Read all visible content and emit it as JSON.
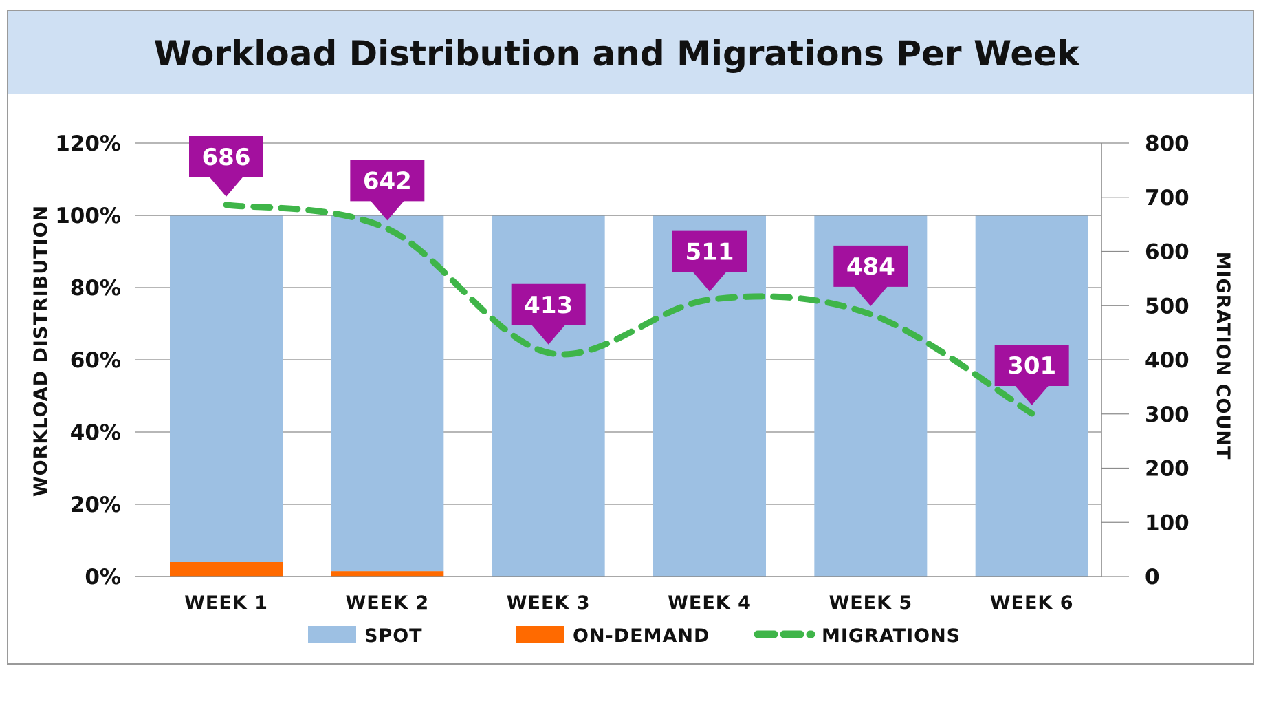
{
  "chart_data": {
    "type": "bar",
    "title": "Workload Distribution and Migrations Per Week",
    "categories": [
      "WEEK 1",
      "WEEK 2",
      "WEEK 3",
      "WEEK 4",
      "WEEK 5",
      "WEEK 6"
    ],
    "series": [
      {
        "name": "SPOT",
        "type": "bar",
        "axis": "left",
        "stacked": true,
        "color": "#9dc0e3",
        "values": [
          96,
          98.5,
          100,
          100,
          100,
          100
        ]
      },
      {
        "name": "ON-DEMAND",
        "type": "bar",
        "axis": "left",
        "stacked": true,
        "color": "#ff6a00",
        "values": [
          4,
          1.5,
          0,
          0,
          0,
          0
        ]
      },
      {
        "name": "MIGRATIONS",
        "type": "line",
        "style": "dashed",
        "axis": "right",
        "color": "#3fb549",
        "values": [
          686,
          642,
          413,
          511,
          484,
          301
        ],
        "labels": [
          "686",
          "642",
          "413",
          "511",
          "484",
          "301"
        ],
        "label_color": "#a3109e"
      }
    ],
    "ylabel": "WORKLOAD DISTRIBUTION",
    "ylim": [
      0,
      120
    ],
    "yticks": [
      "0%",
      "20%",
      "40%",
      "60%",
      "80%",
      "100%",
      "120%"
    ],
    "y2label": "MIGRATION COUNT",
    "y2lim": [
      0,
      800
    ],
    "y2ticks": [
      "0",
      "100",
      "200",
      "300",
      "400",
      "500",
      "600",
      "700",
      "800"
    ],
    "grid": true,
    "legend": [
      "SPOT",
      "ON-DEMAND",
      "MIGRATIONS"
    ],
    "legend_position": "bottom"
  },
  "colors": {
    "title_band": "#cfe0f3",
    "frame": "#9a9a9a",
    "grid": "#8c8c8c",
    "text": "#111111"
  }
}
